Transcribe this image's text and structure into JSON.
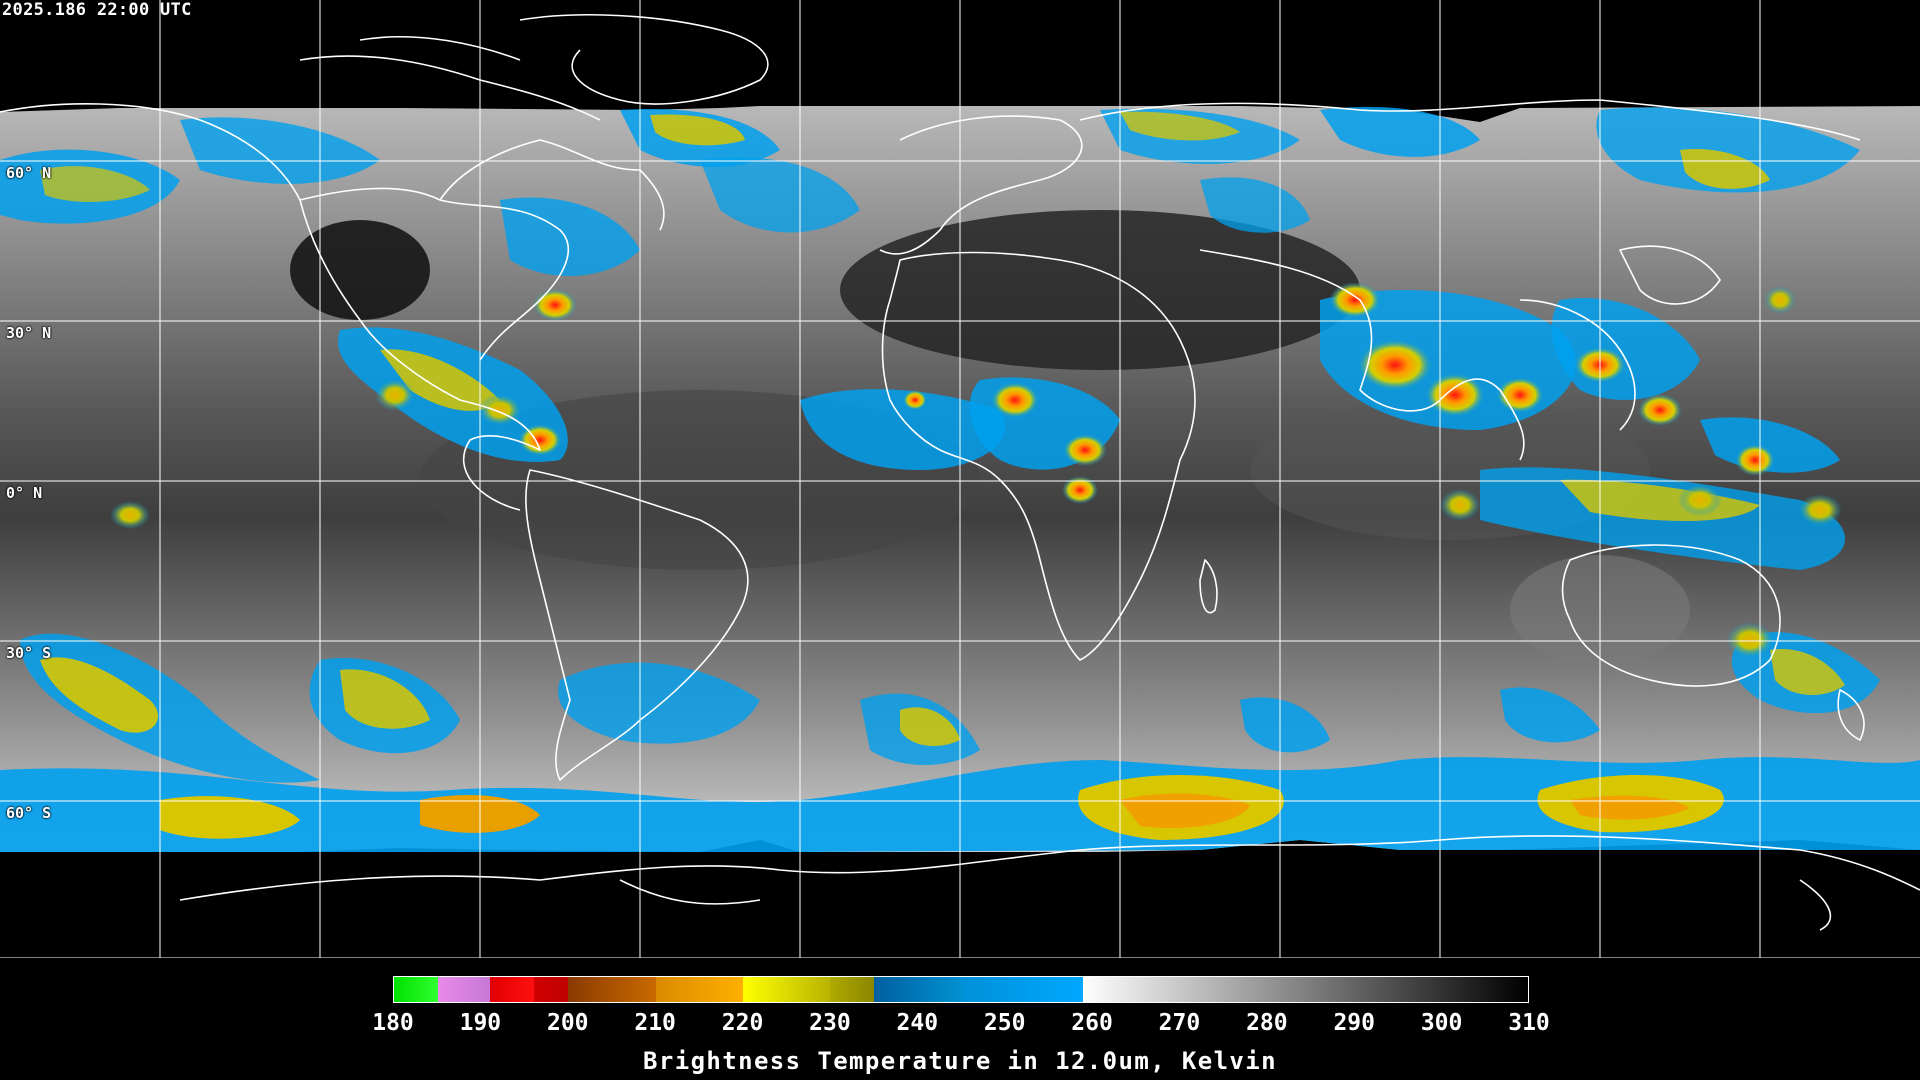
{
  "header": {
    "timestamp": "2025.186 22:00 UTC"
  },
  "map": {
    "projection": "equirectangular",
    "lat_labels": [
      "60° N",
      "30° N",
      "0° N",
      "30° S",
      "60° S"
    ],
    "colors": {
      "background": "#000000",
      "gridlines": "#ffffff",
      "coastlines": "#ffffff"
    }
  },
  "legend": {
    "title": "Brightness Temperature in 12.0um, Kelvin",
    "min": 180,
    "max": 310,
    "ticks": [
      "180",
      "190",
      "200",
      "210",
      "220",
      "230",
      "240",
      "250",
      "260",
      "270",
      "280",
      "290",
      "300",
      "310"
    ],
    "segments": [
      {
        "from": 180,
        "to": 185,
        "colors": [
          "#00e000",
          "#30ff30"
        ]
      },
      {
        "from": 185,
        "to": 191,
        "colors": [
          "#e88ae8",
          "#c878d8"
        ]
      },
      {
        "from": 191,
        "to": 196,
        "colors": [
          "#e00000",
          "#ff1010"
        ]
      },
      {
        "from": 196,
        "to": 200,
        "colors": [
          "#d00000",
          "#c00000"
        ]
      },
      {
        "from": 200,
        "to": 210,
        "colors": [
          "#8a3a00",
          "#c86a00"
        ]
      },
      {
        "from": 210,
        "to": 220,
        "colors": [
          "#d98a00",
          "#ffb000"
        ]
      },
      {
        "from": 220,
        "to": 230,
        "colors": [
          "#ffff00",
          "#b8b400"
        ]
      },
      {
        "from": 230,
        "to": 235,
        "colors": [
          "#b0aa00",
          "#8a8600"
        ]
      },
      {
        "from": 235,
        "to": 245,
        "colors": [
          "#0060a0",
          "#0090d0"
        ]
      },
      {
        "from": 245,
        "to": 259,
        "colors": [
          "#0090d8",
          "#00a8ff"
        ]
      },
      {
        "from": 259,
        "to": 310,
        "colors": [
          "#ffffff",
          "#000000"
        ]
      }
    ]
  }
}
